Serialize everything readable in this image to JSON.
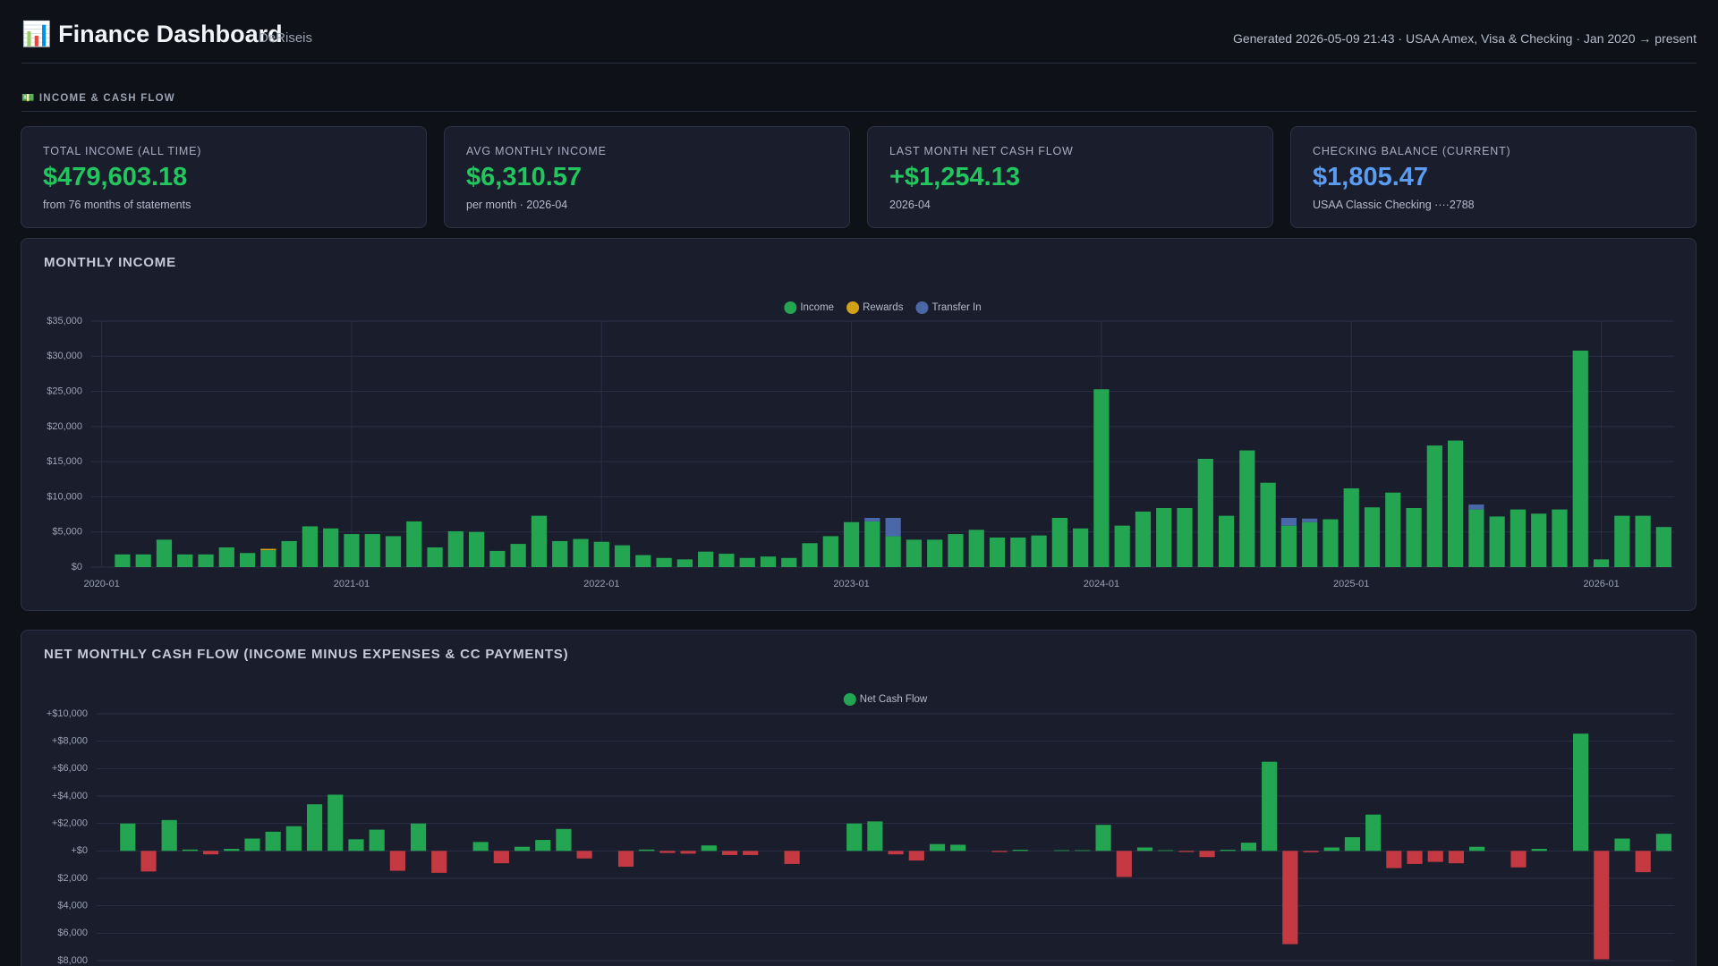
{
  "header": {
    "title": "📊 Finance Dashboard",
    "subtitle": "DeRiseis",
    "meta": "Generated 2026-05-09 21:43 · USAA Amex, Visa & Checking · Jan 2020 → present"
  },
  "section": {
    "label": "💵 INCOME & CASH FLOW"
  },
  "cards": [
    {
      "label": "TOTAL INCOME (ALL TIME)",
      "value": "$479,603.18",
      "note": "from 76 months of statements",
      "color": "#22c55e"
    },
    {
      "label": "AVG MONTHLY INCOME",
      "value": "$6,310.57",
      "note": "per month · 2026-04",
      "color": "#22c55e"
    },
    {
      "label": "LAST MONTH NET CASH FLOW",
      "value": "+$1,254.13",
      "note": "2026-04",
      "color": "#22c55e"
    },
    {
      "label": "CHECKING BALANCE (CURRENT)",
      "value": "$1,805.47",
      "note": "USAA Classic Checking ····2788",
      "color": "#5b9cf0"
    }
  ],
  "chart_data": [
    {
      "type": "bar",
      "stacked": true,
      "title": "MONTHLY INCOME",
      "categories": [
        "2020-01",
        null,
        null,
        null,
        null,
        null,
        null,
        null,
        null,
        null,
        null,
        null,
        "2021-01",
        null,
        null,
        null,
        null,
        null,
        null,
        null,
        null,
        null,
        null,
        null,
        "2022-01",
        null,
        null,
        null,
        null,
        null,
        null,
        null,
        null,
        null,
        null,
        null,
        "2023-01",
        null,
        null,
        null,
        null,
        null,
        null,
        null,
        null,
        null,
        null,
        null,
        "2024-01",
        null,
        null,
        null,
        null,
        null,
        null,
        null,
        null,
        null,
        null,
        null,
        "2025-01",
        null,
        null,
        null,
        null,
        null,
        null,
        null,
        null,
        null,
        null,
        null,
        "2026-01",
        null,
        null,
        null
      ],
      "series": [
        {
          "name": "Income",
          "color": "#23a552",
          "values": [
            0,
            1800,
            1800,
            3900,
            1800,
            1800,
            2800,
            2000,
            2400,
            3700,
            5800,
            5500,
            4700,
            4700,
            4400,
            6500,
            2800,
            5100,
            5000,
            2300,
            3300,
            7300,
            3700,
            4000,
            3600,
            3100,
            1700,
            1300,
            1100,
            2200,
            1900,
            1300,
            1500,
            1300,
            3400,
            4400,
            6400,
            6500,
            4400,
            3900,
            3900,
            4700,
            5300,
            4200,
            4200,
            4500,
            7000,
            5500,
            25300,
            5900,
            7900,
            8400,
            8400,
            15400,
            7300,
            16600,
            12000,
            5900,
            6400,
            6800,
            11200,
            8500,
            10600,
            8400,
            17300,
            18000,
            8200,
            7200,
            8200,
            7600,
            8200,
            30800,
            1100,
            7300,
            7300,
            5700
          ]
        },
        {
          "name": "Rewards",
          "color": "#d4a017",
          "values": [
            0,
            0,
            0,
            0,
            0,
            0,
            0,
            0,
            200,
            0,
            0,
            0,
            0,
            0,
            0,
            0,
            0,
            0,
            0,
            0,
            0,
            0,
            0,
            0,
            0,
            0,
            0,
            0,
            0,
            0,
            0,
            0,
            0,
            0,
            0,
            0,
            0,
            0,
            0,
            0,
            0,
            0,
            0,
            0,
            0,
            0,
            0,
            0,
            0,
            0,
            0,
            0,
            0,
            0,
            0,
            0,
            0,
            0,
            0,
            0,
            0,
            0,
            0,
            0,
            0,
            0,
            0,
            0,
            0,
            0,
            0,
            0,
            0,
            0,
            0,
            0
          ]
        },
        {
          "name": "Transfer In",
          "color": "#4a67a8",
          "values": [
            0,
            0,
            0,
            0,
            0,
            0,
            0,
            0,
            0,
            0,
            0,
            0,
            0,
            0,
            0,
            0,
            0,
            0,
            0,
            0,
            0,
            0,
            0,
            0,
            0,
            0,
            0,
            0,
            0,
            0,
            0,
            0,
            0,
            0,
            0,
            0,
            0,
            500,
            2600,
            0,
            0,
            0,
            0,
            0,
            0,
            0,
            0,
            0,
            0,
            0,
            0,
            0,
            0,
            0,
            0,
            0,
            0,
            1100,
            500,
            0,
            0,
            0,
            0,
            0,
            0,
            0,
            700,
            0,
            0,
            0,
            0,
            0,
            0,
            0,
            0,
            0
          ]
        }
      ],
      "ylim": [
        0,
        35000
      ],
      "yticks": [
        {
          "value": 0,
          "label": "$0"
        },
        {
          "value": 5000,
          "label": "$5,000"
        },
        {
          "value": 10000,
          "label": "$10,000"
        },
        {
          "value": 15000,
          "label": "$15,000"
        },
        {
          "value": 20000,
          "label": "$20,000"
        },
        {
          "value": 25000,
          "label": "$25,000"
        },
        {
          "value": 30000,
          "label": "$30,000"
        },
        {
          "value": 35000,
          "label": "$35,000"
        }
      ],
      "grid": true,
      "legend": "top"
    },
    {
      "type": "bar",
      "stacked": false,
      "title": "NET MONTHLY CASH FLOW (INCOME MINUS EXPENSES & CC PAYMENTS)",
      "categories": [
        null,
        null,
        null,
        null,
        null,
        null,
        null,
        null,
        null,
        null,
        null,
        null,
        null,
        null,
        null,
        null,
        null,
        null,
        null,
        null,
        null,
        null,
        null,
        null,
        null,
        null,
        null,
        null,
        null,
        null,
        null,
        null,
        null,
        null,
        null,
        null,
        null,
        null,
        null,
        null,
        null,
        null,
        null,
        null,
        null,
        null,
        null,
        null,
        null,
        null,
        null,
        null,
        null,
        null,
        null,
        null,
        null,
        null,
        null,
        null,
        null,
        null,
        null,
        null,
        null,
        null,
        null,
        null,
        null,
        null,
        null,
        null,
        null,
        null,
        null,
        null
      ],
      "series": [
        {
          "name": "Net Cash Flow",
          "color": "#23a552",
          "negative_color": "#c53a42",
          "values": [
            0,
            2000,
            -1500,
            2250,
            100,
            -250,
            150,
            900,
            1400,
            1800,
            3400,
            4100,
            850,
            1550,
            -1450,
            2000,
            -1600,
            0,
            650,
            -900,
            300,
            800,
            1600,
            -550,
            0,
            -1150,
            100,
            -150,
            -200,
            400,
            -300,
            -300,
            0,
            -950,
            0,
            0,
            2000,
            2150,
            -250,
            -700,
            500,
            450,
            0,
            -80,
            80,
            0,
            50,
            50,
            1900,
            -1900,
            250,
            50,
            -80,
            -450,
            80,
            600,
            6500,
            -6800,
            -100,
            250,
            1000,
            2650,
            -1250,
            -950,
            -800,
            -900,
            300,
            0,
            -1200,
            150,
            0,
            8550,
            -7900,
            900,
            -1550,
            1250
          ]
        }
      ],
      "ylim": [
        -8000,
        10000
      ],
      "yticks": [
        {
          "value": 10000,
          "label": "+$10,000"
        },
        {
          "value": 8000,
          "label": "+$8,000"
        },
        {
          "value": 6000,
          "label": "+$6,000"
        },
        {
          "value": 4000,
          "label": "+$4,000"
        },
        {
          "value": 2000,
          "label": "+$2,000"
        },
        {
          "value": 0,
          "label": "+$0"
        },
        {
          "value": -2000,
          "label": "$2,000"
        },
        {
          "value": -4000,
          "label": "$4,000"
        },
        {
          "value": -6000,
          "label": "$6,000"
        },
        {
          "value": -8000,
          "label": "$8,000"
        }
      ],
      "grid": true,
      "legend": "top"
    }
  ]
}
